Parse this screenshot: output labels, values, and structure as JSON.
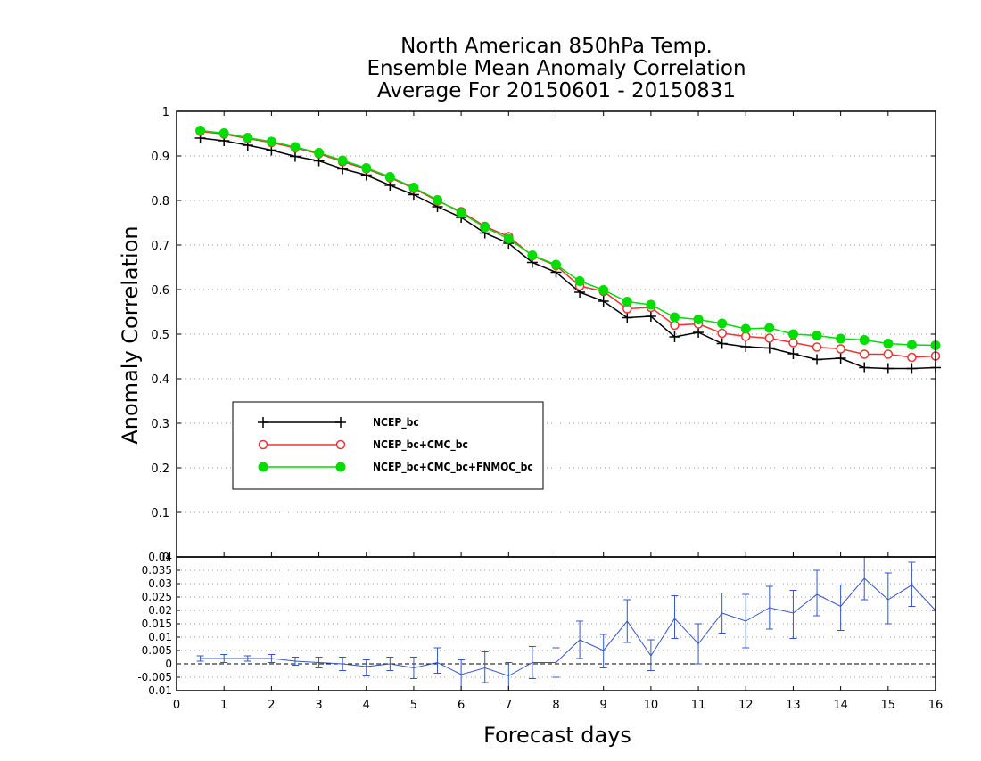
{
  "chart_data": {
    "type": "line",
    "title": [
      "North American 850hPa Temp.",
      "Ensemble Mean Anomaly Correlation",
      "Average For 20150601 - 20150831"
    ],
    "xlabel": "Forecast days",
    "ylabel": "Anomaly Correlation",
    "xlim": [
      0,
      16
    ],
    "x_ticks": [
      "0",
      "1",
      "2",
      "3",
      "4",
      "5",
      "6",
      "7",
      "8",
      "9",
      "10",
      "11",
      "12",
      "13",
      "14",
      "15",
      "16"
    ],
    "main": {
      "ylim": [
        0,
        1
      ],
      "y_ticks": [
        "0",
        "0.1",
        "0.2",
        "0.3",
        "0.4",
        "0.5",
        "0.6",
        "0.7",
        "0.8",
        "0.9",
        "1"
      ],
      "grid": true,
      "legend_position": "center-left",
      "x": [
        0.5,
        1,
        1.5,
        2,
        2.5,
        3,
        3.5,
        4,
        4.5,
        5,
        5.5,
        6,
        6.5,
        7,
        7.5,
        8,
        8.5,
        9,
        9.5,
        10,
        10.5,
        11,
        11.5,
        12,
        12.5,
        13,
        13.5,
        14,
        14.5,
        15,
        15.5,
        16
      ],
      "series": [
        {
          "name": "NCEP_bc",
          "color": "#000000",
          "marker": "plus",
          "values": [
            0.94,
            0.934,
            0.924,
            0.913,
            0.899,
            0.889,
            0.871,
            0.857,
            0.834,
            0.813,
            0.786,
            0.762,
            0.727,
            0.704,
            0.661,
            0.639,
            0.594,
            0.574,
            0.537,
            0.54,
            0.494,
            0.504,
            0.479,
            0.472,
            0.469,
            0.456,
            0.443,
            0.446,
            0.425,
            0.423,
            0.423,
            0.425
          ]
        },
        {
          "name": "NCEP_bc+CMC_bc",
          "color": "#ee3333",
          "marker": "open-circle",
          "values": [
            0.955,
            0.949,
            0.939,
            0.93,
            0.918,
            0.905,
            0.887,
            0.871,
            0.851,
            0.827,
            0.799,
            0.775,
            0.742,
            0.719,
            0.676,
            0.654,
            0.608,
            0.596,
            0.557,
            0.56,
            0.52,
            0.523,
            0.502,
            0.495,
            0.491,
            0.481,
            0.471,
            0.467,
            0.455,
            0.455,
            0.448,
            0.451
          ]
        },
        {
          "name": "NCEP_bc+CMC_bc+FNMOC_bc",
          "color": "#00dd00",
          "marker": "filled-circle",
          "values": [
            0.957,
            0.951,
            0.941,
            0.932,
            0.92,
            0.907,
            0.89,
            0.873,
            0.853,
            0.829,
            0.801,
            0.772,
            0.74,
            0.714,
            0.677,
            0.656,
            0.619,
            0.599,
            0.573,
            0.566,
            0.538,
            0.533,
            0.524,
            0.512,
            0.514,
            0.5,
            0.497,
            0.49,
            0.487,
            0.479,
            0.476,
            0.475
          ]
        }
      ]
    },
    "difference": {
      "ylim": [
        -0.01,
        0.04
      ],
      "y_ticks": [
        "-0.01",
        "-0.005",
        "0",
        "0.005",
        "0.01",
        "0.015",
        "0.02",
        "0.025",
        "0.03",
        "0.035",
        "0.04"
      ],
      "grid": true,
      "color": "#3355cc",
      "values": [
        0.002,
        0.002,
        0.002,
        0.002,
        0.001,
        0.0005,
        0,
        -0.001,
        0,
        -0.0015,
        0.0005,
        -0.004,
        -0.0015,
        -0.0045,
        0.0005,
        0.0005,
        0.009,
        0.005,
        0.016,
        0.003,
        0.017,
        0.0075,
        0.019,
        0.016,
        0.021,
        0.019,
        0.026,
        0.0215,
        0.032,
        0.024,
        0.0295,
        0.02
      ],
      "error_low": [
        0.001,
        0.0005,
        0.001,
        0.0005,
        -0.0005,
        -0.0015,
        -0.0025,
        -0.0045,
        -0.0025,
        -0.0055,
        -0.0035,
        -0.01,
        -0.007,
        -0.01,
        -0.0055,
        -0.005,
        0.002,
        -0.0015,
        0.008,
        -0.0025,
        0.0095,
        0,
        0.0115,
        0.006,
        0.013,
        0.0095,
        0.018,
        0.0125,
        0.024,
        0.015,
        0.0215,
        0.011
      ],
      "error_high": [
        0.003,
        0.0035,
        0.003,
        0.0035,
        0.0025,
        0.0025,
        0.0025,
        0.0015,
        0.0025,
        0.0025,
        0.006,
        0.0015,
        0.0045,
        0.0005,
        0.0065,
        0.006,
        0.016,
        0.011,
        0.024,
        0.009,
        0.0255,
        0.015,
        0.0265,
        0.026,
        0.029,
        0.0275,
        0.035,
        0.0295,
        0.04,
        0.034,
        0.038,
        0.029
      ]
    }
  }
}
